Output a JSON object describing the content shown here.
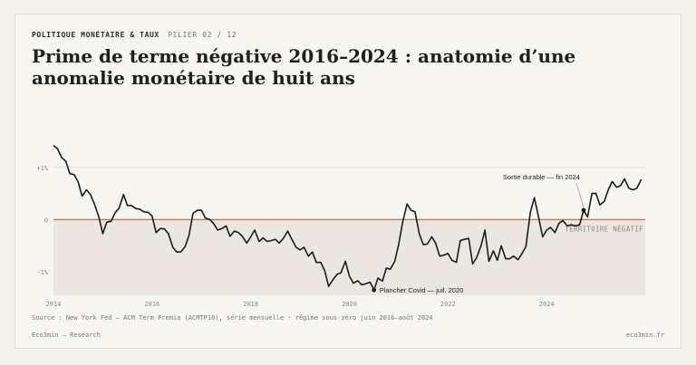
{
  "header": {
    "section": "POLITIQUE MONÉTAIRE & TAUX",
    "pillar": "PILIER 02 / 12",
    "title": "Prime de terme négative 2016–2024 : anatomie d’une anomalie monétaire de huit ans"
  },
  "footer": {
    "source": "Source : New York Fed — ACM Term Premia (ACMTP10), série mensuelle · régime sous-zéro juin 2016–août 2024",
    "brand": "Eco3min — Research",
    "site": "eco3min.fr"
  },
  "colors": {
    "line": "#1c1c1c",
    "zero_line": "#c8785a",
    "negative_zone": "#ebe7e0",
    "text_muted": "#8a8a8a"
  },
  "chart_data": {
    "type": "line",
    "x_ticks": [
      "2014",
      "2016",
      "2018",
      "2020",
      "2022",
      "2024"
    ],
    "y_ticks": [
      {
        "value": 1,
        "label": "+1%"
      },
      {
        "value": 0,
        "label": "0"
      },
      {
        "value": -1,
        "label": "-1%"
      }
    ],
    "xlim": [
      2014.0,
      2026.0
    ],
    "ylim": [
      -1.45,
      1.5
    ],
    "grid": true,
    "zone_label": "TERRITOIRE NÉGATIF",
    "annotations": [
      {
        "label": "Sortie durable — fin 2024",
        "x": 2024.75,
        "y": 0.18
      },
      {
        "label": "Plancher Covid — juil. 2020",
        "x": 2020.5,
        "y": -1.35
      }
    ],
    "series": [
      {
        "values": [
          [
            2014.0,
            1.42
          ],
          [
            2014.08,
            1.36
          ],
          [
            2014.17,
            1.18
          ],
          [
            2014.25,
            1.12
          ],
          [
            2014.33,
            0.88
          ],
          [
            2014.42,
            0.86
          ],
          [
            2014.5,
            0.72
          ],
          [
            2014.58,
            0.45
          ],
          [
            2014.67,
            0.57
          ],
          [
            2014.75,
            0.48
          ],
          [
            2014.83,
            0.3
          ],
          [
            2014.92,
            0.05
          ],
          [
            2015.0,
            -0.27
          ],
          [
            2015.08,
            -0.05
          ],
          [
            2015.17,
            -0.03
          ],
          [
            2015.25,
            0.13
          ],
          [
            2015.33,
            0.22
          ],
          [
            2015.42,
            0.48
          ],
          [
            2015.5,
            0.27
          ],
          [
            2015.58,
            0.27
          ],
          [
            2015.67,
            0.21
          ],
          [
            2015.75,
            0.2
          ],
          [
            2015.83,
            0.15
          ],
          [
            2015.92,
            0.14
          ],
          [
            2016.0,
            0.07
          ],
          [
            2016.08,
            -0.25
          ],
          [
            2016.17,
            -0.17
          ],
          [
            2016.25,
            -0.18
          ],
          [
            2016.33,
            -0.27
          ],
          [
            2016.42,
            -0.53
          ],
          [
            2016.5,
            -0.62
          ],
          [
            2016.58,
            -0.62
          ],
          [
            2016.67,
            -0.52
          ],
          [
            2016.75,
            -0.3
          ],
          [
            2016.83,
            0.12
          ],
          [
            2016.92,
            0.18
          ],
          [
            2017.0,
            0.18
          ],
          [
            2017.08,
            0.03
          ],
          [
            2017.17,
            0.0
          ],
          [
            2017.25,
            -0.08
          ],
          [
            2017.33,
            -0.2
          ],
          [
            2017.42,
            -0.17
          ],
          [
            2017.5,
            -0.12
          ],
          [
            2017.58,
            -0.32
          ],
          [
            2017.67,
            -0.22
          ],
          [
            2017.75,
            -0.25
          ],
          [
            2017.83,
            -0.32
          ],
          [
            2017.92,
            -0.45
          ],
          [
            2018.0,
            -0.33
          ],
          [
            2018.08,
            -0.2
          ],
          [
            2018.17,
            -0.42
          ],
          [
            2018.25,
            -0.35
          ],
          [
            2018.33,
            -0.42
          ],
          [
            2018.42,
            -0.4
          ],
          [
            2018.5,
            -0.38
          ],
          [
            2018.58,
            -0.45
          ],
          [
            2018.67,
            -0.35
          ],
          [
            2018.75,
            -0.22
          ],
          [
            2018.83,
            -0.37
          ],
          [
            2018.92,
            -0.53
          ],
          [
            2019.0,
            -0.58
          ],
          [
            2019.08,
            -0.53
          ],
          [
            2019.17,
            -0.7
          ],
          [
            2019.25,
            -0.62
          ],
          [
            2019.33,
            -0.82
          ],
          [
            2019.42,
            -0.82
          ],
          [
            2019.5,
            -0.98
          ],
          [
            2019.58,
            -1.28
          ],
          [
            2019.67,
            -1.15
          ],
          [
            2019.75,
            -1.05
          ],
          [
            2019.83,
            -1.02
          ],
          [
            2019.92,
            -0.8
          ],
          [
            2020.0,
            -1.08
          ],
          [
            2020.08,
            -1.22
          ],
          [
            2020.17,
            -1.17
          ],
          [
            2020.25,
            -1.25
          ],
          [
            2020.33,
            -1.23
          ],
          [
            2020.42,
            -1.2
          ],
          [
            2020.5,
            -1.35
          ],
          [
            2020.58,
            -1.12
          ],
          [
            2020.67,
            -1.18
          ],
          [
            2020.75,
            -0.93
          ],
          [
            2020.83,
            -0.95
          ],
          [
            2020.92,
            -0.8
          ],
          [
            2021.0,
            -0.48
          ],
          [
            2021.08,
            -0.05
          ],
          [
            2021.17,
            0.3
          ],
          [
            2021.25,
            0.18
          ],
          [
            2021.33,
            0.15
          ],
          [
            2021.42,
            -0.28
          ],
          [
            2021.5,
            -0.48
          ],
          [
            2021.58,
            -0.47
          ],
          [
            2021.67,
            -0.33
          ],
          [
            2021.75,
            -0.45
          ],
          [
            2021.83,
            -0.7
          ],
          [
            2021.92,
            -0.68
          ],
          [
            2022.0,
            -0.65
          ],
          [
            2022.08,
            -0.78
          ],
          [
            2022.17,
            -0.82
          ],
          [
            2022.25,
            -0.4
          ],
          [
            2022.33,
            -0.38
          ],
          [
            2022.42,
            -0.36
          ],
          [
            2022.5,
            -0.85
          ],
          [
            2022.58,
            -0.73
          ],
          [
            2022.67,
            -0.5
          ],
          [
            2022.75,
            -0.2
          ],
          [
            2022.83,
            -0.8
          ],
          [
            2022.92,
            -0.6
          ],
          [
            2023.0,
            -0.78
          ],
          [
            2023.08,
            -0.5
          ],
          [
            2023.17,
            -0.75
          ],
          [
            2023.25,
            -0.75
          ],
          [
            2023.33,
            -0.7
          ],
          [
            2023.42,
            -0.77
          ],
          [
            2023.5,
            -0.65
          ],
          [
            2023.58,
            -0.52
          ],
          [
            2023.67,
            0.14
          ],
          [
            2023.75,
            0.42
          ],
          [
            2023.83,
            0.08
          ],
          [
            2023.92,
            -0.33
          ],
          [
            2024.0,
            -0.2
          ],
          [
            2024.08,
            -0.15
          ],
          [
            2024.17,
            -0.25
          ],
          [
            2024.25,
            -0.07
          ],
          [
            2024.33,
            -0.02
          ],
          [
            2024.42,
            -0.12
          ],
          [
            2024.5,
            -0.1
          ],
          [
            2024.58,
            -0.12
          ],
          [
            2024.67,
            -0.1
          ],
          [
            2024.75,
            0.18
          ],
          [
            2024.83,
            0.05
          ],
          [
            2024.92,
            0.5
          ],
          [
            2025.0,
            0.5
          ],
          [
            2025.08,
            0.28
          ],
          [
            2025.17,
            0.35
          ],
          [
            2025.25,
            0.57
          ],
          [
            2025.33,
            0.73
          ],
          [
            2025.42,
            0.62
          ],
          [
            2025.5,
            0.65
          ],
          [
            2025.58,
            0.78
          ],
          [
            2025.67,
            0.6
          ],
          [
            2025.75,
            0.57
          ],
          [
            2025.83,
            0.6
          ],
          [
            2025.92,
            0.77
          ]
        ]
      }
    ]
  }
}
